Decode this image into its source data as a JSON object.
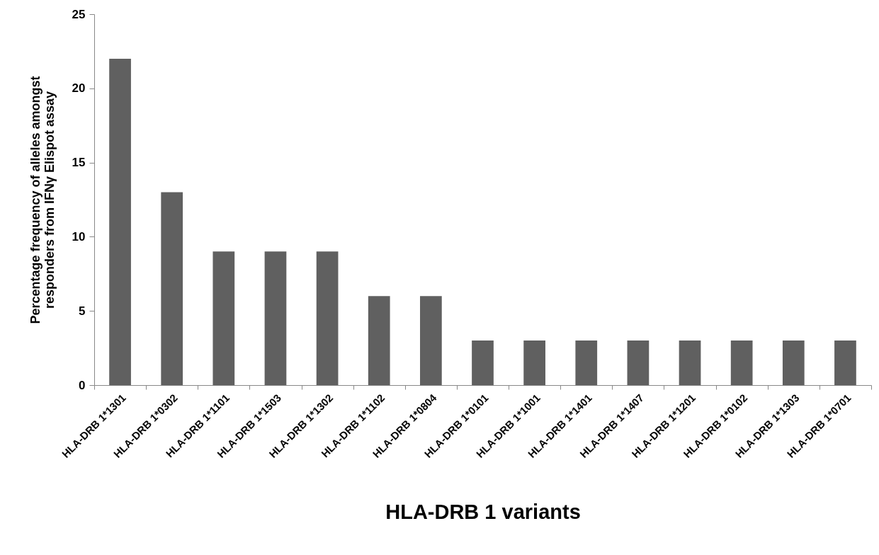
{
  "chart_data": {
    "type": "bar",
    "xlabel": "HLA-DRB 1 variants",
    "ylabel": "Percentage frequency of alleles amongst\nresponders from IFNγ Elispot assay",
    "categories": [
      "HLA-DRB 1*1301",
      "HLA-DRB 1*0302",
      "HLA-DRB 1*1101",
      "HLA-DRB 1*1503",
      "HLA-DRB 1*1302",
      "HLA-DRB 1*1102",
      "HLA-DRB 1*0804",
      "HLA-DRB 1*0101",
      "HLA-DRB 1*1001",
      "HLA-DRB 1*1401",
      "HLA-DRB 1*1407",
      "HLA-DRB 1*1201",
      "HLA-DRB 1*0102",
      "HLA-DRB 1*1303",
      "HLA-DRB 1*0701"
    ],
    "values": [
      22,
      13,
      9,
      9,
      9,
      6,
      6,
      3,
      3,
      3,
      3,
      3,
      3,
      3,
      3
    ],
    "color": "#606060",
    "ylim": [
      0,
      25
    ],
    "yticks": [
      0,
      5,
      10,
      15,
      20,
      25
    ],
    "grid": false,
    "legend": false
  }
}
